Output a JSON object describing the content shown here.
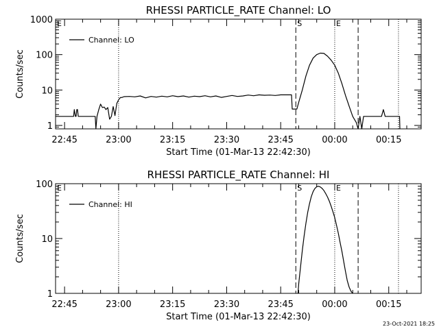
{
  "chart_data": [
    {
      "type": "line",
      "title": "RHESSI PARTICLE_RATE Channel: LO",
      "xlabel": "Start Time (01-Mar-13 22:42:30)",
      "ylabel": "Counts/sec",
      "x_unit": "time (HH:MM, 01-Mar-13 to 02-Mar-13)",
      "xlim": [
        "22:42:30",
        "00:24:00"
      ],
      "ylim": [
        0.8,
        1000
      ],
      "yscale": "log",
      "x_ticks": [
        "22:45",
        "23:00",
        "23:15",
        "23:30",
        "23:45",
        "00:00",
        "00:15"
      ],
      "y_ticks": [
        "1",
        "10",
        "100",
        "1000"
      ],
      "legend_position": "top-left",
      "grid": false,
      "series": [
        {
          "name": "Channel: LO",
          "x": [
            "22:42:30",
            "22:47:30",
            "22:47:42",
            "22:48:00",
            "22:48:12",
            "22:48:24",
            "22:48:36",
            "22:48:48",
            "22:49:00",
            "22:49:12",
            "22:49:30",
            "22:53:30",
            "22:53:42",
            "22:54:00",
            "22:54:30",
            "22:55:00",
            "22:55:30",
            "22:56:00",
            "22:56:30",
            "22:57:00",
            "22:57:30",
            "22:58:00",
            "22:58:30",
            "22:59:00",
            "22:59:30",
            "23:00:00",
            "23:00:30",
            "23:01:00",
            "23:01:30",
            "23:03:00",
            "23:04:30",
            "23:06:00",
            "23:07:30",
            "23:09:00",
            "23:10:30",
            "23:12:00",
            "23:13:30",
            "23:15:00",
            "23:16:30",
            "23:18:00",
            "23:19:30",
            "23:21:00",
            "23:22:30",
            "23:24:00",
            "23:25:30",
            "23:27:00",
            "23:28:30",
            "23:30:00",
            "23:31:30",
            "23:33:00",
            "23:34:30",
            "23:36:00",
            "23:37:30",
            "23:39:00",
            "23:40:30",
            "23:42:00",
            "23:43:30",
            "23:45:00",
            "23:46:30",
            "23:48:00",
            "23:48:12",
            "23:49:30",
            "23:50:00",
            "23:51:00",
            "23:52:00",
            "23:53:00",
            "23:54:00",
            "23:55:00",
            "23:56:00",
            "23:57:00",
            "23:58:00",
            "23:59:00",
            "00:00:00",
            "00:01:00",
            "00:02:00",
            "00:03:00",
            "00:04:00",
            "00:05:00",
            "00:06:00",
            "00:06:30",
            "00:07:00",
            "00:07:30",
            "00:08:00",
            "00:08:30",
            "00:09:00",
            "00:13:00",
            "00:13:30",
            "00:14:00",
            "00:14:30",
            "00:18:00",
            "00:18:06"
          ],
          "y": [
            1.8,
            1.8,
            2.8,
            1.8,
            1.8,
            2.8,
            2.8,
            1.8,
            1.8,
            1.8,
            1.8,
            1.8,
            0.8,
            1.8,
            2.8,
            4,
            3.2,
            3.3,
            2.8,
            3.2,
            1.5,
            1.8,
            3.4,
            1.9,
            4.2,
            5.3,
            6.1,
            6.2,
            6.5,
            6.6,
            6.4,
            6.8,
            6.0,
            6.6,
            6.3,
            6.7,
            6.4,
            6.9,
            6.5,
            6.8,
            6.3,
            6.7,
            6.5,
            6.9,
            6.4,
            6.8,
            6.2,
            6.6,
            7.0,
            6.6,
            6.8,
            7.2,
            6.9,
            7.3,
            7.1,
            7.2,
            7.0,
            7.3,
            7.3,
            7.3,
            2.9,
            2.9,
            4.5,
            10,
            25,
            50,
            80,
            100,
            110,
            108,
            90,
            70,
            50,
            30,
            15,
            7,
            3.5,
            1.8,
            1.2,
            0.8,
            1.8,
            0.8,
            1.8,
            1.8,
            1.8,
            1.8,
            2.8,
            1.8,
            1.8,
            1.8,
            0.8
          ]
        }
      ],
      "vlines": [
        {
          "x": "23:00:00",
          "style": "dotted",
          "label": ""
        },
        {
          "x": "23:49:12",
          "style": "dashed",
          "label": "S"
        },
        {
          "x": "00:00:00",
          "style": "dotted",
          "label": "E"
        },
        {
          "x": "00:06:30",
          "style": "dashed",
          "label": ""
        },
        {
          "x": "00:17:42",
          "style": "dotted",
          "label": ""
        }
      ],
      "left_marker": "E"
    },
    {
      "type": "line",
      "title": "RHESSI PARTICLE_RATE Channel: HI",
      "xlabel": "Start Time (01-Mar-13 22:42:30)",
      "ylabel": "Counts/sec",
      "x_unit": "time (HH:MM, 01-Mar-13 to 02-Mar-13)",
      "xlim": [
        "22:42:30",
        "00:24:00"
      ],
      "ylim": [
        1,
        100
      ],
      "yscale": "log",
      "x_ticks": [
        "22:45",
        "23:00",
        "23:15",
        "23:30",
        "23:45",
        "00:00",
        "00:15"
      ],
      "y_ticks": [
        "1",
        "10",
        "100"
      ],
      "legend_position": "top-left",
      "grid": false,
      "series": [
        {
          "name": "Channel: HI",
          "x": [
            "23:49:48",
            "23:50:00",
            "23:50:30",
            "23:51:00",
            "23:51:30",
            "23:52:00",
            "23:52:30",
            "23:53:00",
            "23:53:30",
            "23:54:00",
            "23:54:30",
            "23:55:00",
            "23:55:30",
            "23:56:00",
            "23:56:30",
            "23:57:00",
            "23:57:30",
            "23:58:00",
            "23:58:30",
            "23:59:00",
            "23:59:30",
            "00:00:00",
            "00:00:30",
            "00:01:00",
            "00:01:30",
            "00:02:00",
            "00:02:30",
            "00:03:00",
            "00:03:30",
            "00:04:00",
            "00:04:30",
            "00:05:00"
          ],
          "y": [
            1,
            1.5,
            3,
            6,
            11,
            19,
            30,
            43,
            58,
            72,
            82,
            88,
            90,
            87,
            82,
            75,
            66,
            57,
            48,
            39,
            31,
            24,
            17.5,
            12.5,
            8.5,
            5.8,
            3.8,
            2.5,
            1.7,
            1.3,
            1.1,
            1
          ]
        }
      ],
      "vlines": [
        {
          "x": "23:00:00",
          "style": "dotted",
          "label": ""
        },
        {
          "x": "23:49:12",
          "style": "dashed",
          "label": "S"
        },
        {
          "x": "00:00:00",
          "style": "dotted",
          "label": "E"
        },
        {
          "x": "00:06:30",
          "style": "dashed",
          "label": ""
        },
        {
          "x": "00:17:42",
          "style": "dotted",
          "label": ""
        }
      ],
      "left_marker": "E"
    }
  ],
  "footer": {
    "timestamp": "23-Oct-2021 18:25"
  }
}
